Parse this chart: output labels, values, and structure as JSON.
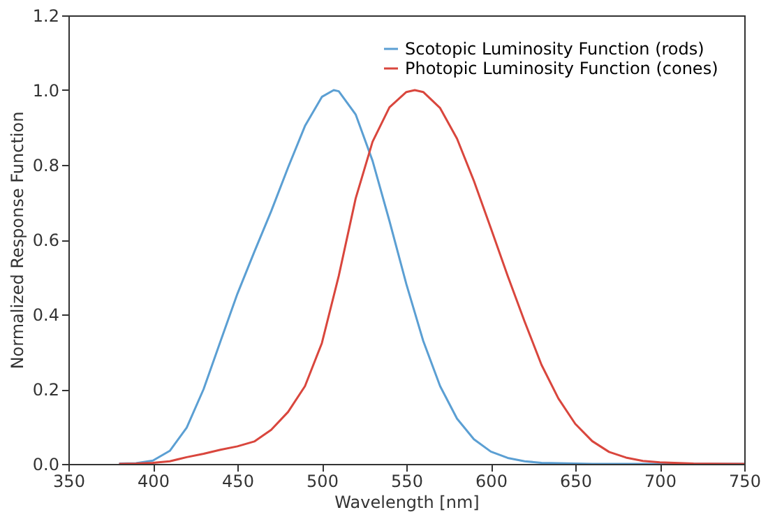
{
  "chart_data": {
    "type": "line",
    "xlabel": "Wavelength [nm]",
    "ylabel": "Normalized Response Function",
    "xlim": [
      350,
      750
    ],
    "ylim": [
      0,
      1.2
    ],
    "xticks": [
      350,
      400,
      450,
      500,
      550,
      600,
      650,
      700,
      750
    ],
    "yticks": [
      {
        "value": 0,
        "label": "0.0"
      },
      0.2,
      0.4,
      0.6,
      0.8,
      {
        "value": 1,
        "label": "1.0"
      },
      1.2
    ],
    "grid": false,
    "legend": "top right",
    "marker": "none",
    "line_style": "solid",
    "series": [
      {
        "name": "Scotopic Luminosity Function (rods)",
        "color": "#5b9fd3",
        "x": [
          380,
          390,
          400,
          410,
          420,
          430,
          440,
          450,
          460,
          470,
          480,
          490,
          500,
          507,
          510,
          520,
          530,
          540,
          550,
          560,
          570,
          580,
          590,
          600,
          610,
          620,
          630,
          640,
          650,
          660,
          680,
          700,
          750
        ],
        "values": [
          0.001,
          0.002,
          0.009,
          0.035,
          0.097,
          0.2,
          0.328,
          0.455,
          0.567,
          0.676,
          0.793,
          0.904,
          0.982,
          1.0,
          0.997,
          0.935,
          0.811,
          0.65,
          0.481,
          0.329,
          0.208,
          0.121,
          0.066,
          0.033,
          0.016,
          0.007,
          0.003,
          0.002,
          0.001,
          0.0,
          0.0,
          0.0,
          0.0
        ]
      },
      {
        "name": "Photopic Luminosity Function (cones)",
        "color": "#d9463d",
        "x": [
          380,
          390,
          400,
          410,
          420,
          430,
          440,
          450,
          460,
          470,
          480,
          490,
          500,
          510,
          520,
          530,
          540,
          550,
          555,
          560,
          570,
          580,
          590,
          600,
          610,
          620,
          630,
          640,
          650,
          660,
          670,
          680,
          690,
          700,
          720,
          750
        ],
        "values": [
          0.0,
          0.001,
          0.003,
          0.007,
          0.018,
          0.027,
          0.038,
          0.047,
          0.06,
          0.091,
          0.139,
          0.208,
          0.323,
          0.503,
          0.71,
          0.862,
          0.954,
          0.995,
          1.0,
          0.995,
          0.952,
          0.87,
          0.757,
          0.631,
          0.503,
          0.381,
          0.265,
          0.175,
          0.107,
          0.061,
          0.032,
          0.017,
          0.008,
          0.004,
          0.001,
          0.0
        ]
      }
    ]
  }
}
